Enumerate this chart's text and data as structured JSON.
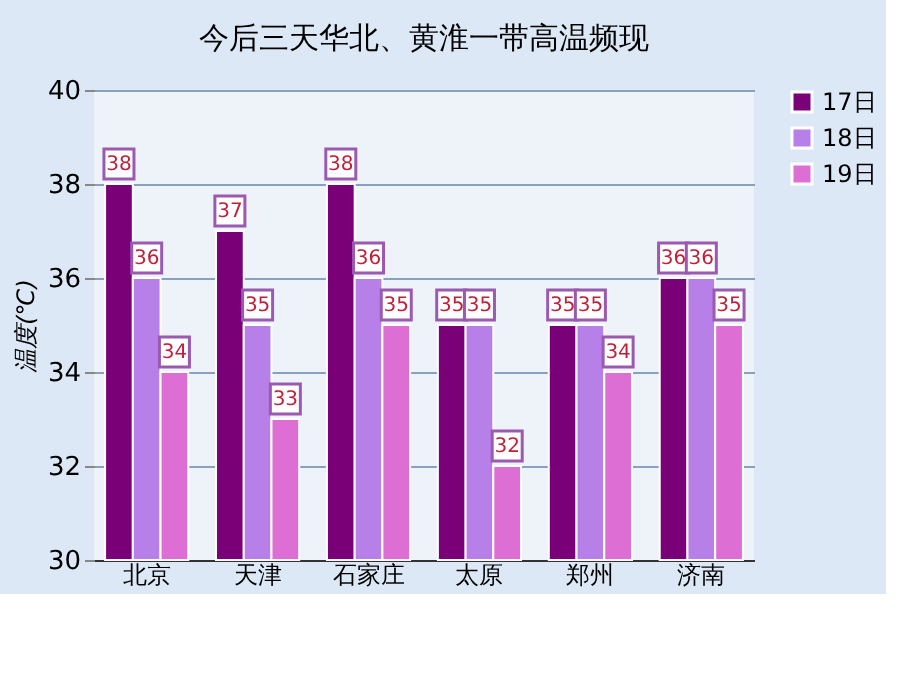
{
  "chart_data": {
    "type": "bar",
    "title": "今后三天华北、黄淮一带高温频现",
    "ylabel": "温度(℃)",
    "categories": [
      "北京",
      "天津",
      "石家庄",
      "太原",
      "郑州",
      "济南"
    ],
    "series": [
      {
        "name": "17日",
        "color": "#7a0078",
        "values": [
          38,
          37,
          38,
          35,
          35,
          36
        ]
      },
      {
        "name": "18日",
        "color": "#b77fe8",
        "values": [
          36,
          35,
          36,
          35,
          35,
          36
        ]
      },
      {
        "name": "19日",
        "color": "#dc6ed4",
        "values": [
          34,
          33,
          35,
          32,
          34,
          35
        ]
      }
    ],
    "ylim": [
      30,
      40
    ],
    "yticks": [
      30,
      32,
      34,
      36,
      38,
      40
    ],
    "grid": "y",
    "legend": "right",
    "data_labels": true
  }
}
